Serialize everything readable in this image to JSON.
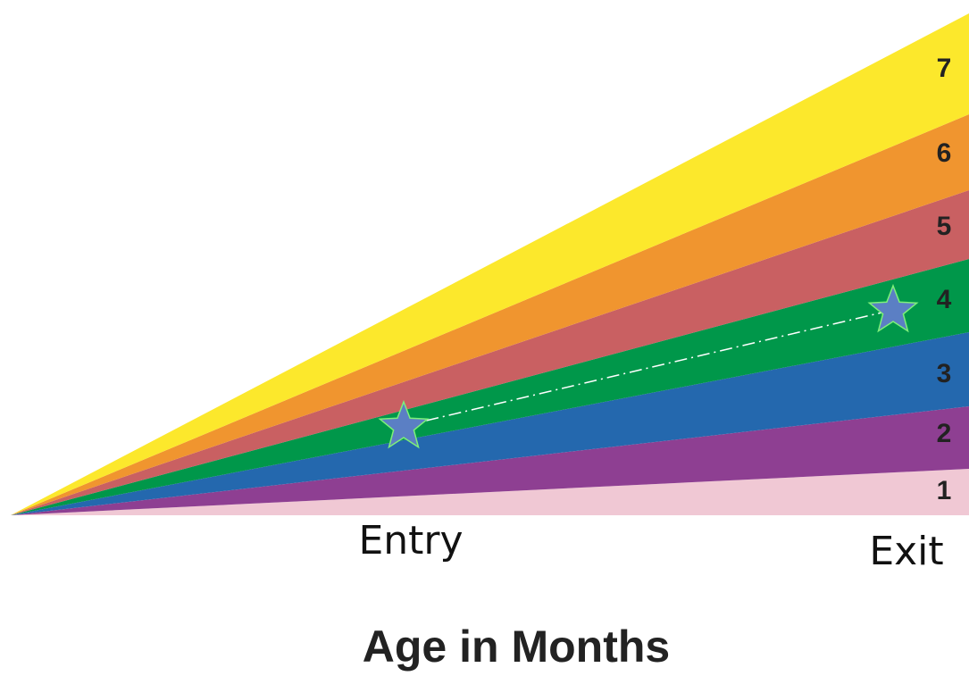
{
  "bands": [
    {
      "label": "1",
      "color": "#f0c8d4"
    },
    {
      "label": "2",
      "color": "#8e3f92"
    },
    {
      "label": "3",
      "color": "#2468ae"
    },
    {
      "label": "4",
      "color": "#00974a"
    },
    {
      "label": "5",
      "color": "#c96062"
    },
    {
      "label": "6",
      "color": "#f0952f"
    },
    {
      "label": "7",
      "color": "#fce82c"
    }
  ],
  "entry_label": "Entry",
  "exit_label": "Exit",
  "axis_title": "Age in Months"
}
